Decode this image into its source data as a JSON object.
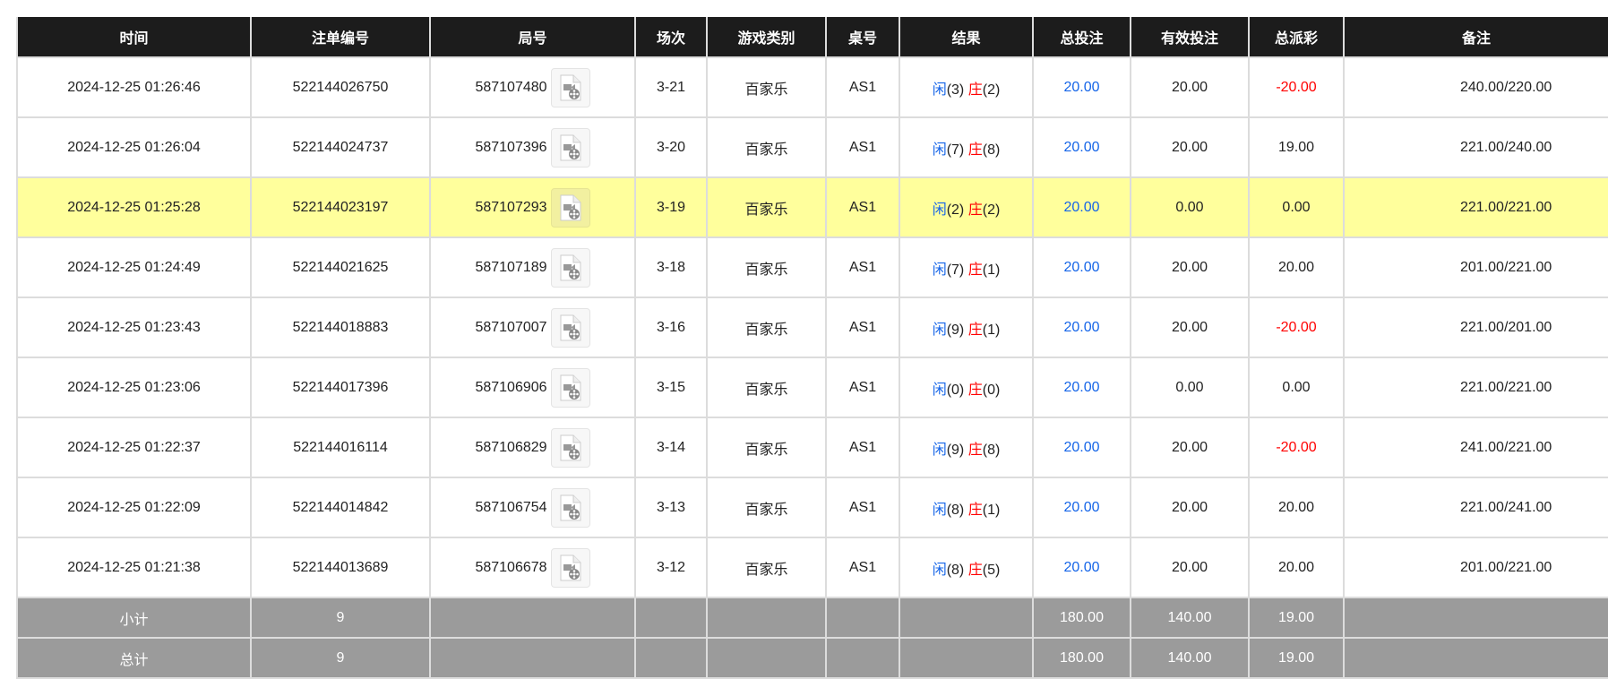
{
  "headers": [
    "时间",
    "注单编号",
    "局号",
    "场次",
    "游戏类别",
    "桌号",
    "结果",
    "总投注",
    "有效投注",
    "总派彩",
    "备注"
  ],
  "rows": [
    {
      "time": "2024-12-25 01:26:46",
      "bet_id": "522144026750",
      "round": "587107480",
      "session": "3-21",
      "game": "百家乐",
      "table": "AS1",
      "player_label": "闲",
      "player": "(3)",
      "banker_label": "庄",
      "banker": "(2)",
      "total_bet": "20.00",
      "valid_bet": "20.00",
      "payout": "-20.00",
      "payout_negative": true,
      "note": "240.00/220.00",
      "highlight": false
    },
    {
      "time": "2024-12-25 01:26:04",
      "bet_id": "522144024737",
      "round": "587107396",
      "session": "3-20",
      "game": "百家乐",
      "table": "AS1",
      "player_label": "闲",
      "player": "(7)",
      "banker_label": "庄",
      "banker": "(8)",
      "total_bet": "20.00",
      "valid_bet": "20.00",
      "payout": "19.00",
      "payout_negative": false,
      "note": "221.00/240.00",
      "highlight": false
    },
    {
      "time": "2024-12-25 01:25:28",
      "bet_id": "522144023197",
      "round": "587107293",
      "session": "3-19",
      "game": "百家乐",
      "table": "AS1",
      "player_label": "闲",
      "player": "(2)",
      "banker_label": "庄",
      "banker": "(2)",
      "total_bet": "20.00",
      "valid_bet": "0.00",
      "payout": "0.00",
      "payout_negative": false,
      "note": "221.00/221.00",
      "highlight": true
    },
    {
      "time": "2024-12-25 01:24:49",
      "bet_id": "522144021625",
      "round": "587107189",
      "session": "3-18",
      "game": "百家乐",
      "table": "AS1",
      "player_label": "闲",
      "player": "(7)",
      "banker_label": "庄",
      "banker": "(1)",
      "total_bet": "20.00",
      "valid_bet": "20.00",
      "payout": "20.00",
      "payout_negative": false,
      "note": "201.00/221.00",
      "highlight": false
    },
    {
      "time": "2024-12-25 01:23:43",
      "bet_id": "522144018883",
      "round": "587107007",
      "session": "3-16",
      "game": "百家乐",
      "table": "AS1",
      "player_label": "闲",
      "player": "(9)",
      "banker_label": "庄",
      "banker": "(1)",
      "total_bet": "20.00",
      "valid_bet": "20.00",
      "payout": "-20.00",
      "payout_negative": true,
      "note": "221.00/201.00",
      "highlight": false
    },
    {
      "time": "2024-12-25 01:23:06",
      "bet_id": "522144017396",
      "round": "587106906",
      "session": "3-15",
      "game": "百家乐",
      "table": "AS1",
      "player_label": "闲",
      "player": "(0)",
      "banker_label": "庄",
      "banker": "(0)",
      "total_bet": "20.00",
      "valid_bet": "0.00",
      "payout": "0.00",
      "payout_negative": false,
      "note": "221.00/221.00",
      "highlight": false
    },
    {
      "time": "2024-12-25 01:22:37",
      "bet_id": "522144016114",
      "round": "587106829",
      "session": "3-14",
      "game": "百家乐",
      "table": "AS1",
      "player_label": "闲",
      "player": "(9)",
      "banker_label": "庄",
      "banker": "(8)",
      "total_bet": "20.00",
      "valid_bet": "20.00",
      "payout": "-20.00",
      "payout_negative": true,
      "note": "241.00/221.00",
      "highlight": false
    },
    {
      "time": "2024-12-25 01:22:09",
      "bet_id": "522144014842",
      "round": "587106754",
      "session": "3-13",
      "game": "百家乐",
      "table": "AS1",
      "player_label": "闲",
      "player": "(8)",
      "banker_label": "庄",
      "banker": "(1)",
      "total_bet": "20.00",
      "valid_bet": "20.00",
      "payout": "20.00",
      "payout_negative": false,
      "note": "221.00/241.00",
      "highlight": false
    },
    {
      "time": "2024-12-25 01:21:38",
      "bet_id": "522144013689",
      "round": "587106678",
      "session": "3-12",
      "game": "百家乐",
      "table": "AS1",
      "player_label": "闲",
      "player": "(8)",
      "banker_label": "庄",
      "banker": "(5)",
      "total_bet": "20.00",
      "valid_bet": "20.00",
      "payout": "20.00",
      "payout_negative": false,
      "note": "201.00/221.00",
      "highlight": false
    }
  ],
  "subtotal": {
    "label": "小计",
    "count": "9",
    "total_bet": "180.00",
    "valid_bet": "140.00",
    "payout": "19.00"
  },
  "total": {
    "label": "总计",
    "count": "9",
    "total_bet": "180.00",
    "valid_bet": "140.00",
    "payout": "19.00"
  },
  "colors": {
    "header_bg": "#1c1c1c",
    "highlight_row": "#ffff9c",
    "summary_bg": "#9b9b9b",
    "blue": "#1565e8",
    "red": "#ff0000"
  },
  "icons": {
    "round_video": "video-file-icon"
  }
}
